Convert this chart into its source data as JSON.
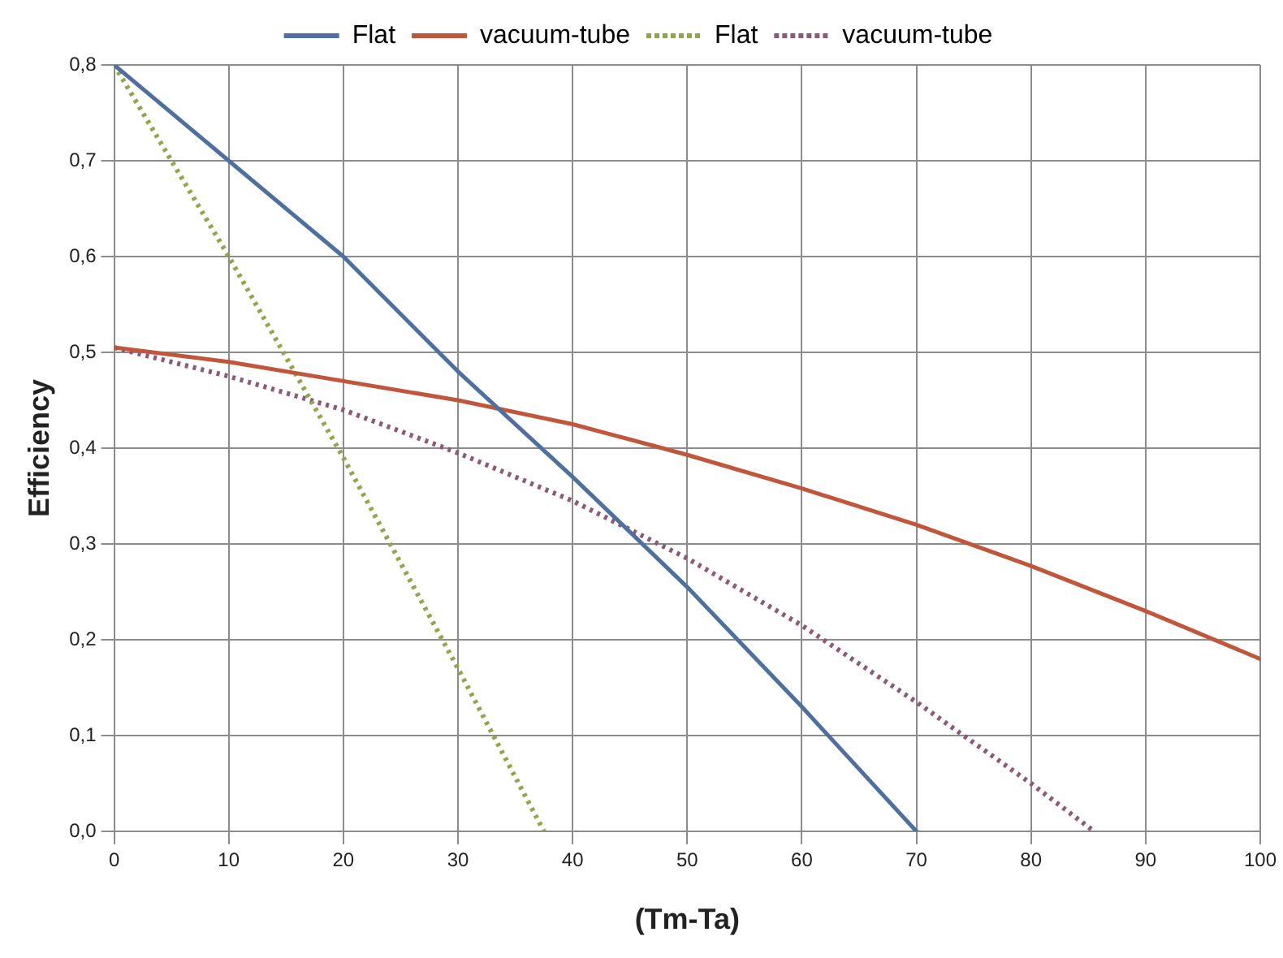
{
  "chart_data": {
    "type": "line",
    "xlabel": "(Tm-Ta)",
    "ylabel": "Efficiency",
    "legend": "top",
    "grid": true,
    "marker": "none",
    "xlim": [
      0,
      100
    ],
    "xticks": [
      0,
      10,
      20,
      30,
      40,
      50,
      60,
      70,
      80,
      90,
      100
    ],
    "ylim": [
      0,
      0.8
    ],
    "yticks": [
      {
        "value": 0,
        "label": "0,0"
      },
      {
        "value": 0.1,
        "label": "0,1"
      },
      {
        "value": 0.2,
        "label": "0,2"
      },
      {
        "value": 0.3,
        "label": "0,3"
      },
      {
        "value": 0.4,
        "label": "0,4"
      },
      {
        "value": 0.5,
        "label": "0,5"
      },
      {
        "value": 0.6,
        "label": "0,6"
      },
      {
        "value": 0.7,
        "label": "0,7"
      },
      {
        "value": 0.8,
        "label": "0,8"
      }
    ],
    "series": [
      {
        "name": "Flat",
        "color": "#4f6f9f",
        "line_style": "solid",
        "x": [
          0,
          10,
          20,
          30,
          40,
          50,
          60,
          70
        ],
        "values": [
          0.8,
          0.7,
          0.6,
          0.48,
          0.37,
          0.255,
          0.13,
          0
        ]
      },
      {
        "name": "vacuum-tube",
        "color": "#c0563b",
        "line_style": "solid",
        "x": [
          0,
          10,
          20,
          30,
          40,
          50,
          60,
          70,
          80,
          90,
          100
        ],
        "values": [
          0.505,
          0.49,
          0.47,
          0.45,
          0.425,
          0.393,
          0.358,
          0.32,
          0.277,
          0.23,
          0.18
        ]
      },
      {
        "name": "Flat",
        "color": "#8fa54e",
        "line_style": "dotted",
        "x": [
          0,
          10,
          20,
          30,
          37.5
        ],
        "values": [
          0.8,
          0.6,
          0.39,
          0.17,
          0
        ]
      },
      {
        "name": "vacuum-tube",
        "color": "#8a5a78",
        "line_style": "dotted",
        "x": [
          0,
          10,
          20,
          30,
          40,
          50,
          60,
          70,
          80,
          85.5
        ],
        "values": [
          0.505,
          0.475,
          0.44,
          0.395,
          0.345,
          0.285,
          0.215,
          0.135,
          0.05,
          0
        ]
      }
    ]
  }
}
